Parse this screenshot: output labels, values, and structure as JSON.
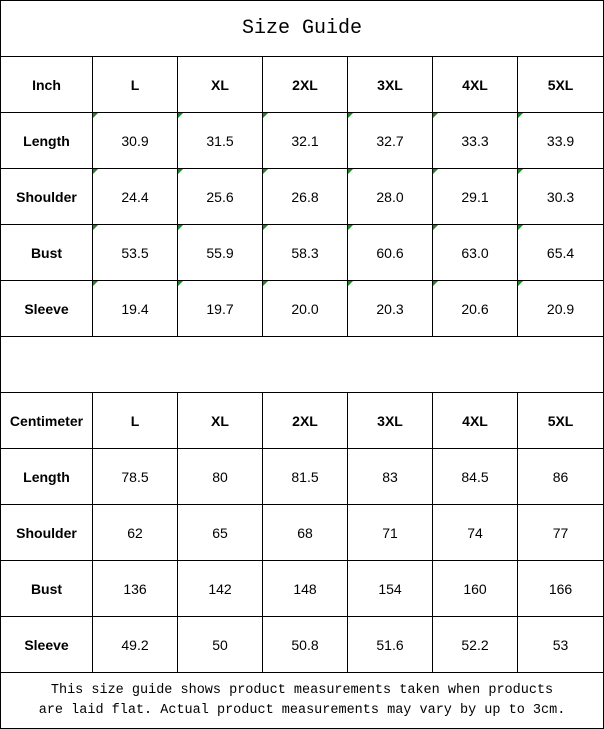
{
  "title": "Size Guide",
  "sizes": [
    "L",
    "XL",
    "2XL",
    "3XL",
    "4XL",
    "5XL"
  ],
  "inch": {
    "header": "Inch",
    "rows": [
      {
        "label": "Length",
        "values": [
          "30.9",
          "31.5",
          "32.1",
          "32.7",
          "33.3",
          "33.9"
        ]
      },
      {
        "label": "Shoulder",
        "values": [
          "24.4",
          "25.6",
          "26.8",
          "28.0",
          "29.1",
          "30.3"
        ]
      },
      {
        "label": "Bust",
        "values": [
          "53.5",
          "55.9",
          "58.3",
          "60.6",
          "63.0",
          "65.4"
        ]
      },
      {
        "label": "Sleeve",
        "values": [
          "19.4",
          "19.7",
          "20.0",
          "20.3",
          "20.6",
          "20.9"
        ]
      }
    ]
  },
  "centimeter": {
    "header": "Centimeter",
    "rows": [
      {
        "label": "Length",
        "values": [
          "78.5",
          "80",
          "81.5",
          "83",
          "84.5",
          "86"
        ]
      },
      {
        "label": "Shoulder",
        "values": [
          "62",
          "65",
          "68",
          "71",
          "74",
          "77"
        ]
      },
      {
        "label": "Bust",
        "values": [
          "136",
          "142",
          "148",
          "154",
          "160",
          "166"
        ]
      },
      {
        "label": "Sleeve",
        "values": [
          "49.2",
          "50",
          "50.8",
          "51.6",
          "52.2",
          "53"
        ]
      }
    ]
  },
  "note_line1": "This size guide shows product measurements taken when products",
  "note_line2": "are laid flat. Actual product measurements may vary by up to 3cm.",
  "marker_color": "#1a8a1a"
}
